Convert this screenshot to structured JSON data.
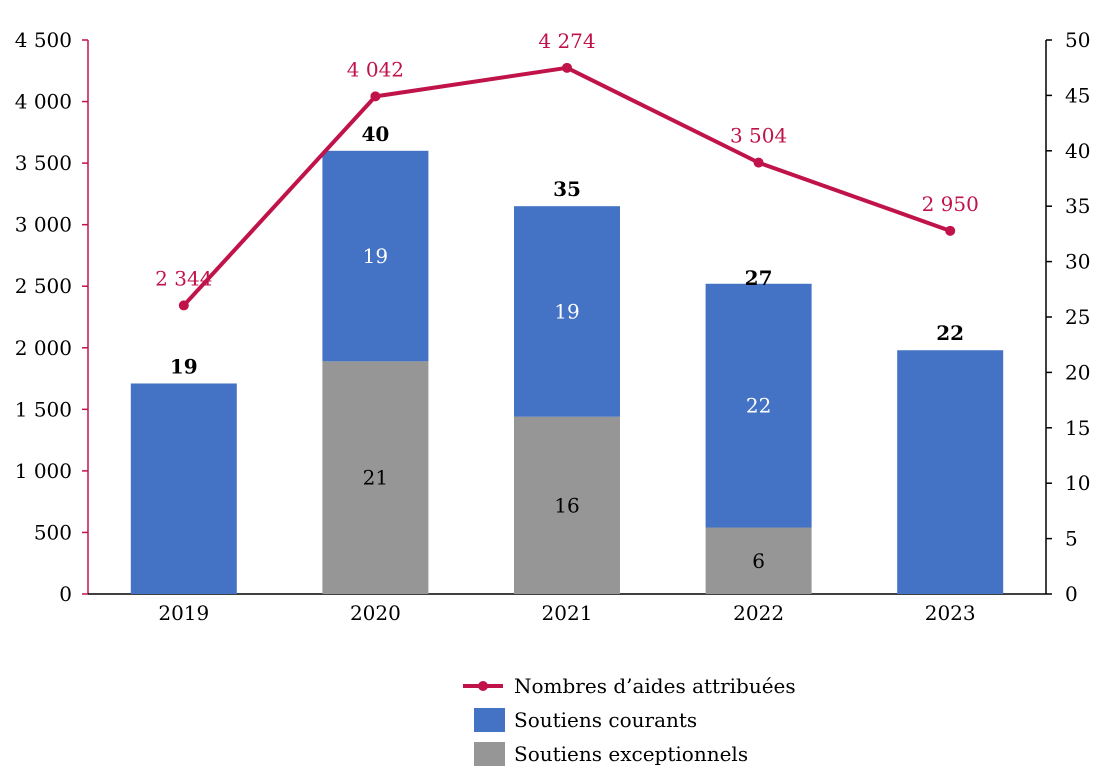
{
  "chart_data": {
    "type": "bar",
    "stacked": true,
    "categories": [
      "2019",
      "2020",
      "2021",
      "2022",
      "2023"
    ],
    "left_axis": {
      "ylim": [
        0,
        4500
      ],
      "ticks": [
        0,
        500,
        1000,
        1500,
        2000,
        2500,
        3000,
        3500,
        4000,
        4500
      ],
      "tick_labels": [
        "0",
        "500",
        "1 000",
        "1 500",
        "2 000",
        "2 500",
        "3 000",
        "3 500",
        "4 000",
        "4 500"
      ]
    },
    "right_axis": {
      "ylim": [
        0,
        50
      ],
      "ticks": [
        0,
        5,
        10,
        15,
        20,
        25,
        30,
        35,
        40,
        45,
        50
      ],
      "tick_labels": [
        "0",
        "5",
        "10",
        "15",
        "20",
        "25",
        "30",
        "35",
        "40",
        "45",
        "50"
      ]
    },
    "bar_series": [
      {
        "name": "Soutiens exceptionnels",
        "axis": "right",
        "color": "#969696",
        "label_color": "#000000",
        "values": [
          0,
          21,
          16,
          6,
          0
        ],
        "labels": [
          "",
          "21",
          "16",
          "6",
          ""
        ]
      },
      {
        "name": "Soutiens courants",
        "axis": "right",
        "color": "#4472C4",
        "label_color": "#ffffff",
        "values": [
          19,
          19,
          19,
          22,
          22
        ],
        "labels": [
          "",
          "19",
          "19",
          "22",
          ""
        ]
      }
    ],
    "totals": {
      "values": [
        19,
        40,
        35,
        27,
        22
      ],
      "labels": [
        "19",
        "40",
        "35",
        "27",
        "22"
      ]
    },
    "line_series": {
      "name": "Nombres d’aides attribuées",
      "axis": "left",
      "color": "#C0134A",
      "values": [
        2344,
        4042,
        4274,
        3504,
        2950
      ],
      "labels": [
        "2 344",
        "4 042",
        "4 274",
        "3 504",
        "2 950"
      ]
    },
    "legend": {
      "position": "bottom-center",
      "items": [
        {
          "label": "Nombres d’aides attribuées",
          "kind": "line",
          "color": "#C0134A"
        },
        {
          "label": "Soutiens courants",
          "kind": "box",
          "color": "#4472C4"
        },
        {
          "label": "Soutiens exceptionnels",
          "kind": "box",
          "color": "#969696"
        }
      ]
    },
    "colors": {
      "left_axis_line": "#C0134A",
      "right_axis_line": "#000000"
    },
    "grid": false
  }
}
